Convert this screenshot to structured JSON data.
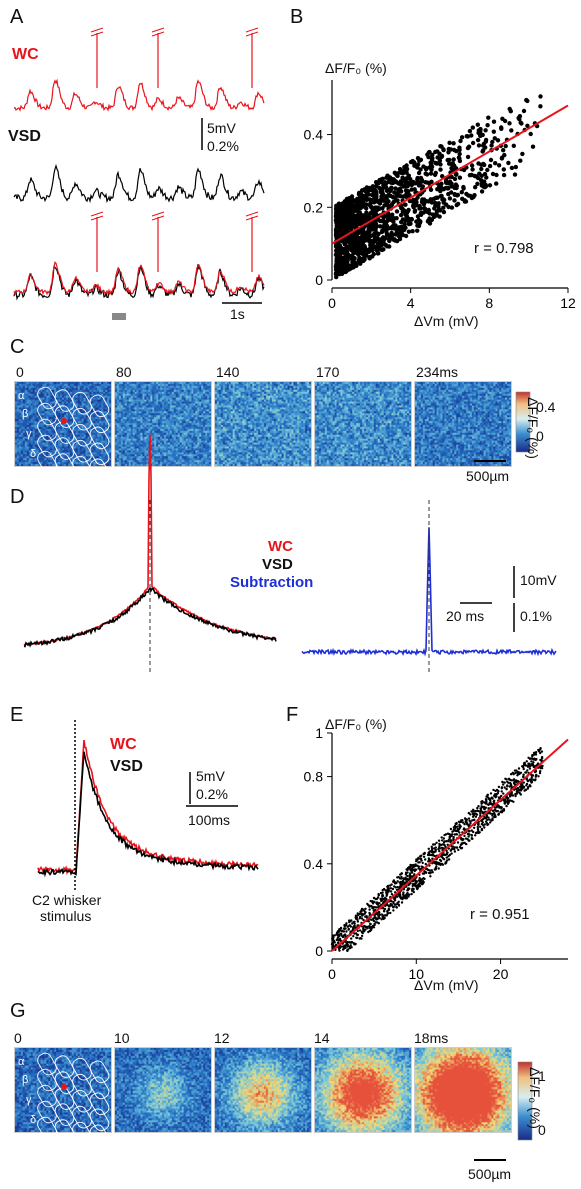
{
  "panels": {
    "A": {
      "letter": "A",
      "wc": "WC",
      "vsd": "VSD",
      "scale_mv": "5mV",
      "scale_pct": "0.2%",
      "scale_time": "1s"
    },
    "B": {
      "letter": "B",
      "ylabel": "ΔF/F₀ (%)",
      "xlabel": "ΔVm (mV)",
      "r_text": "r = 0.798",
      "xticks": [
        "0",
        "4",
        "8",
        "12"
      ],
      "yticks": [
        "0",
        "0.2",
        "0.4"
      ]
    },
    "C": {
      "letter": "C",
      "times": [
        "0",
        "80",
        "140",
        "170",
        "234ms"
      ],
      "cbar_ticks": [
        "0.4",
        "0"
      ],
      "cbar_label": "ΔF/F₀ (%)",
      "scalebar": "500µm",
      "barrels": [
        "α",
        "β",
        "γ",
        "δ"
      ]
    },
    "D": {
      "letter": "D",
      "wc": "WC",
      "vsd": "VSD",
      "sub": "Subtraction",
      "scale_mv": "10mV",
      "scale_time": "20 ms",
      "scale_pct": "0.1%"
    },
    "E": {
      "letter": "E",
      "wc": "WC",
      "vsd": "VSD",
      "scale_mv": "5mV",
      "scale_pct": "0.2%",
      "scale_time": "100ms",
      "stim1": "C2 whisker",
      "stim2": "stimulus"
    },
    "F": {
      "letter": "F",
      "ylabel": "ΔF/F₀ (%)",
      "xlabel": "ΔVm (mV)",
      "r_text": "r = 0.951",
      "xticks": [
        "0",
        "10",
        "20"
      ],
      "yticks": [
        "0",
        "0.4",
        "0.8",
        "1"
      ]
    },
    "G": {
      "letter": "G",
      "times": [
        "0",
        "10",
        "12",
        "14",
        "18ms"
      ],
      "cbar_ticks": [
        "1",
        "0"
      ],
      "cbar_label": "ΔF/F₀ (%)",
      "scalebar": "500µm",
      "barrels": [
        "α",
        "β",
        "γ",
        "δ"
      ]
    }
  },
  "colors": {
    "wc": "#e8141c",
    "vsd": "#000000",
    "subtraction": "#1f2fd6",
    "fit": "#e8141c"
  },
  "chart_data": [
    {
      "type": "scatter",
      "panel": "B",
      "xlabel": "ΔVm (mV)",
      "ylabel": "ΔF/F₀ (%)",
      "xlim": [
        0,
        12
      ],
      "ylim": [
        0,
        0.55
      ],
      "fit_line": {
        "x": [
          0,
          12
        ],
        "y": [
          0.1,
          0.48
        ]
      },
      "r": 0.798
    },
    {
      "type": "scatter",
      "panel": "F",
      "xlabel": "ΔVm (mV)",
      "ylabel": "ΔF/F₀ (%)",
      "xlim": [
        0,
        28
      ],
      "ylim": [
        0,
        1
      ],
      "fit_line": {
        "x": [
          0,
          28
        ],
        "y": [
          0,
          0.97
        ]
      },
      "r": 0.951
    }
  ]
}
